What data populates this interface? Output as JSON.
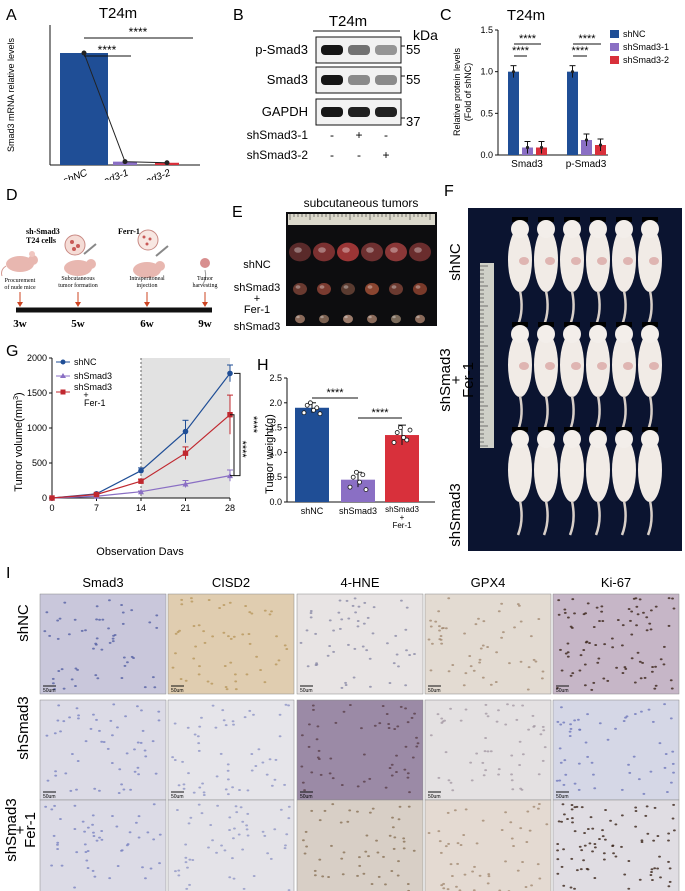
{
  "panel_letters": [
    "A",
    "B",
    "C",
    "D",
    "E",
    "F",
    "G",
    "H",
    "I"
  ],
  "colors": {
    "shNC": "#1f4e96",
    "sh1": "#8a6fc4",
    "sh2": "#d8303b",
    "red_line": "#c0282f",
    "lightgray": "#e2e2e2"
  },
  "A": {
    "title": "T24m",
    "ylabel": "Smad3 mRNA relative levels",
    "sig": "****",
    "categories": [
      "shNC",
      "shSmad3-1",
      "shSmad3-2"
    ]
  },
  "B": {
    "title": "T24m",
    "unit": "kDa",
    "bands": [
      {
        "label": "p-Smad3",
        "kda": "55"
      },
      {
        "label": "Smad3",
        "kda": "55"
      },
      {
        "label": "GAPDH",
        "kda": "37"
      }
    ],
    "conditions": [
      {
        "label": "shSmad3-1",
        "signs": [
          "-",
          "+",
          "-"
        ]
      },
      {
        "label": "shSmad3-2",
        "signs": [
          "-",
          "-",
          "+"
        ]
      }
    ]
  },
  "C": {
    "title": "T24m",
    "ylabel_1": "Relative protein levels",
    "ylabel_2": "(Fold of shNC)",
    "sig": "****",
    "legend": [
      "shNC",
      "shSmad3-1",
      "shSmad3-2"
    ],
    "groups": [
      "Smad3",
      "p-Smad3"
    ]
  },
  "D": {
    "top_labels": [
      "sh-Smad3",
      "T24 cells",
      "Ferr-1"
    ],
    "steps": [
      "Procurement",
      "of nude mice",
      "Subcutaneous",
      "tumor formation",
      "Intraperitoneal",
      "injection",
      "Tumor",
      "harvesting"
    ],
    "weeks": [
      "3w",
      "5w",
      "6w",
      "9w"
    ]
  },
  "E": {
    "title": "subcutaneous tumors",
    "rows": [
      "shNC",
      "shSmad3",
      "+",
      "Fer-1",
      "shSmad3"
    ]
  },
  "F": {
    "rows": [
      "shNC",
      "shSmad3",
      "+",
      "Fer-1",
      "shSmad3"
    ]
  },
  "G": {
    "ylabel": "Tumor volume(mm",
    "ylabel_sup": "3",
    "ylabel_end": ")",
    "xlabel": "Observation Days",
    "sig": "****",
    "legend": [
      "shNC",
      "shSmad3",
      "shSmad3",
      "+",
      "Fer-1"
    ]
  },
  "H": {
    "ylabel": "Tumor weight(g)",
    "sig": "****",
    "categories": [
      "shNC",
      "shSmad3",
      "shSmad3",
      "+",
      "Fer-1"
    ]
  },
  "I": {
    "columns": [
      "Smad3",
      "CISD2",
      "4-HNE",
      "GPX4",
      "Ki-67"
    ],
    "rows": [
      "shNC",
      "shSmad3",
      "shSmad3",
      "+",
      "Fer-1"
    ],
    "scalebar": "50um"
  },
  "chart_data": [
    {
      "panel": "A",
      "type": "bar",
      "title": "T24m",
      "ylabel": "Smad3 mRNA relative levels",
      "categories": [
        "shNC",
        "shSmad3-1",
        "shSmad3-2"
      ],
      "values": [
        1.0,
        0.03,
        0.02
      ],
      "ylim": [
        0,
        1.25
      ]
    },
    {
      "panel": "C",
      "type": "bar",
      "title": "T24m",
      "ylabel": "Relative protein levels (Fold of shNC)",
      "categories": [
        "Smad3",
        "p-Smad3"
      ],
      "series": [
        {
          "name": "shNC",
          "values": [
            1.0,
            1.0
          ]
        },
        {
          "name": "shSmad3-1",
          "values": [
            0.09,
            0.18
          ]
        },
        {
          "name": "shSmad3-2",
          "values": [
            0.09,
            0.12
          ]
        }
      ],
      "ylim": [
        0,
        1.5
      ],
      "yticks": [
        0.0,
        0.5,
        1.0,
        1.5
      ]
    },
    {
      "panel": "G",
      "type": "line",
      "xlabel": "Observation Days",
      "ylabel": "Tumor volume(mm3)",
      "x": [
        0,
        7,
        14,
        21,
        28
      ],
      "series": [
        {
          "name": "shNC",
          "values": [
            0,
            60,
            390,
            950,
            1780
          ]
        },
        {
          "name": "shSmad3",
          "values": [
            0,
            25,
            90,
            200,
            320
          ]
        },
        {
          "name": "shSmad3 + Fer-1",
          "values": [
            0,
            50,
            240,
            640,
            1190
          ]
        }
      ],
      "ylim": [
        0,
        2000
      ],
      "yticks": [
        0,
        500,
        1000,
        1500,
        2000
      ],
      "xticks": [
        0,
        7,
        14,
        21,
        28
      ]
    },
    {
      "panel": "H",
      "type": "bar",
      "ylabel": "Tumor weight(g)",
      "categories": [
        "shNC",
        "shSmad3",
        "shSmad3 + Fer-1"
      ],
      "values": [
        1.9,
        0.45,
        1.35
      ],
      "ylim": [
        0,
        2.5
      ],
      "yticks": [
        0.0,
        0.5,
        1.0,
        1.5,
        2.0,
        2.5
      ]
    }
  ]
}
